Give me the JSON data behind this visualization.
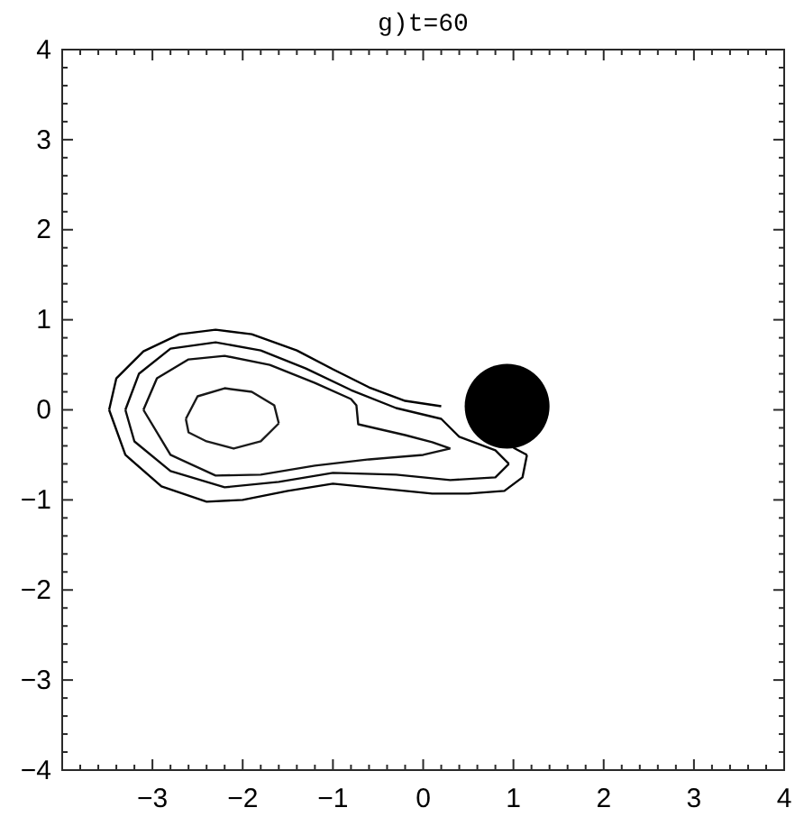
{
  "chart_data": {
    "type": "line",
    "title": "g)t=60",
    "xlim": [
      -4,
      4
    ],
    "ylim": [
      -4,
      4
    ],
    "xticks": [
      {
        "value": -4,
        "label": null
      },
      {
        "value": -3.8,
        "label": null
      },
      {
        "value": -3.6,
        "label": null
      },
      {
        "value": -3.4,
        "label": null
      },
      {
        "value": -3.2,
        "label": null
      },
      -3,
      {
        "value": -2.8,
        "label": null
      },
      {
        "value": -2.6,
        "label": null
      },
      {
        "value": -2.4,
        "label": null
      },
      {
        "value": -2.2,
        "label": null
      },
      -2,
      {
        "value": -1.8,
        "label": null
      },
      {
        "value": -1.6,
        "label": null
      },
      {
        "value": -1.4,
        "label": null
      },
      {
        "value": -1.2,
        "label": null
      },
      -1,
      {
        "value": -0.8,
        "label": null
      },
      {
        "value": -0.6,
        "label": null
      },
      {
        "value": -0.4,
        "label": null
      },
      {
        "value": -0.2,
        "label": null
      },
      0,
      {
        "value": 0.2,
        "label": null
      },
      {
        "value": 0.4,
        "label": null
      },
      {
        "value": 0.6,
        "label": null
      },
      {
        "value": 0.8,
        "label": null
      },
      1,
      {
        "value": 1.2,
        "label": null
      },
      {
        "value": 1.4,
        "label": null
      },
      {
        "value": 1.6,
        "label": null
      },
      {
        "value": 1.8,
        "label": null
      },
      2,
      {
        "value": 2.2,
        "label": null
      },
      {
        "value": 2.4,
        "label": null
      },
      {
        "value": 2.6,
        "label": null
      },
      {
        "value": 2.8,
        "label": null
      },
      3,
      {
        "value": 3.2,
        "label": null
      },
      {
        "value": 3.4,
        "label": null
      },
      {
        "value": 3.6,
        "label": null
      },
      {
        "value": 3.8,
        "label": null
      },
      4
    ],
    "yticks": [
      -4,
      {
        "value": -3.8,
        "label": null
      },
      {
        "value": -3.6,
        "label": null
      },
      {
        "value": -3.4,
        "label": null
      },
      {
        "value": -3.2,
        "label": null
      },
      -3,
      {
        "value": -2.8,
        "label": null
      },
      {
        "value": -2.6,
        "label": null
      },
      {
        "value": -2.4,
        "label": null
      },
      {
        "value": -2.2,
        "label": null
      },
      -2,
      {
        "value": -1.8,
        "label": null
      },
      {
        "value": -1.6,
        "label": null
      },
      {
        "value": -1.4,
        "label": null
      },
      {
        "value": -1.2,
        "label": null
      },
      -1,
      {
        "value": -0.8,
        "label": null
      },
      {
        "value": -0.6,
        "label": null
      },
      {
        "value": -0.4,
        "label": null
      },
      {
        "value": -0.2,
        "label": null
      },
      0,
      {
        "value": 0.2,
        "label": null
      },
      {
        "value": 0.4,
        "label": null
      },
      {
        "value": 0.6,
        "label": null
      },
      {
        "value": 0.8,
        "label": null
      },
      1,
      {
        "value": 1.2,
        "label": null
      },
      {
        "value": 1.4,
        "label": null
      },
      {
        "value": 1.6,
        "label": null
      },
      {
        "value": 1.8,
        "label": null
      },
      2,
      {
        "value": 2.2,
        "label": null
      },
      {
        "value": 2.4,
        "label": null
      },
      {
        "value": 2.6,
        "label": null
      },
      {
        "value": 2.8,
        "label": null
      },
      3,
      {
        "value": 3.2,
        "label": null
      },
      {
        "value": 3.4,
        "label": null
      },
      {
        "value": 3.6,
        "label": null
      },
      {
        "value": 3.8,
        "label": null
      },
      4
    ],
    "marker": "none",
    "line_style": "solid",
    "grid": false,
    "series": [
      {
        "color": "#000000",
        "x": [
          -3.48,
          -3.4,
          -3.1,
          -2.7,
          -2.3,
          -1.9,
          -1.4,
          -1.0,
          -0.6,
          -0.2,
          0.2,
          0.5,
          0.7,
          1.0,
          1.15
        ],
        "values": [
          0,
          0.35,
          0.65,
          0.84,
          0.89,
          0.84,
          0.66,
          0.45,
          0.25,
          0.1,
          0.04,
          null,
          null,
          -0.42,
          -0.5
        ]
      },
      {
        "color": "#040404",
        "x": [
          -3.48,
          -3.3,
          -2.9,
          -2.4,
          -2.0,
          -1.5,
          -1.0,
          -0.4,
          0.1,
          0.5,
          0.9,
          1.1,
          1.15
        ],
        "values": [
          0,
          -0.5,
          -0.85,
          -1.02,
          -1.0,
          -0.9,
          -0.82,
          -0.88,
          -0.93,
          -0.93,
          -0.9,
          -0.75,
          -0.5
        ]
      },
      {
        "color": "#080808",
        "x": [
          -3.3,
          -3.15,
          -2.8,
          -2.3,
          -1.8,
          -1.3,
          -0.8,
          -0.3,
          0.2,
          0.4,
          0.8,
          0.95
        ],
        "values": [
          0,
          0.4,
          0.68,
          0.75,
          0.66,
          0.46,
          0.22,
          0.02,
          -0.1,
          -0.3,
          -0.45,
          -0.6
        ]
      },
      {
        "color": "#0c0c0c",
        "x": [
          -3.3,
          -3.2,
          -2.8,
          -2.2,
          -1.6,
          -1.0,
          -0.3,
          0.3,
          0.8,
          0.95
        ],
        "values": [
          0,
          -0.35,
          -0.68,
          -0.86,
          -0.8,
          -0.7,
          -0.72,
          -0.78,
          -0.75,
          -0.6
        ]
      },
      {
        "color": "#101010",
        "x": [
          -3.1,
          -2.95,
          -2.6,
          -2.2,
          -1.7,
          -1.2,
          -0.8,
          -0.74,
          -0.72,
          -0.2,
          0.1,
          0.3
        ],
        "values": [
          0,
          0.35,
          0.56,
          0.6,
          0.5,
          0.3,
          0.12,
          0.05,
          -0.16,
          -0.28,
          -0.36,
          -0.43
        ]
      },
      {
        "color": "#141414",
        "x": [
          -3.1,
          -2.8,
          -2.3,
          -1.8,
          -1.2,
          -0.6,
          0.0,
          0.3
        ],
        "values": [
          0,
          -0.5,
          -0.73,
          -0.72,
          -0.62,
          -0.55,
          -0.5,
          -0.43
        ]
      },
      {
        "color": "#181818",
        "x": [
          -2.63,
          -2.5,
          -2.2,
          -1.9,
          -1.65,
          -1.6
        ],
        "values": [
          -0.1,
          0.15,
          0.24,
          0.2,
          0.05,
          -0.15
        ]
      },
      {
        "color": "#1c1c1c",
        "x": [
          -2.63,
          -2.6,
          -2.4,
          -2.1,
          -1.8,
          -1.6
        ],
        "values": [
          -0.1,
          -0.25,
          -0.35,
          -0.43,
          -0.35,
          -0.15
        ]
      }
    ]
  }
}
